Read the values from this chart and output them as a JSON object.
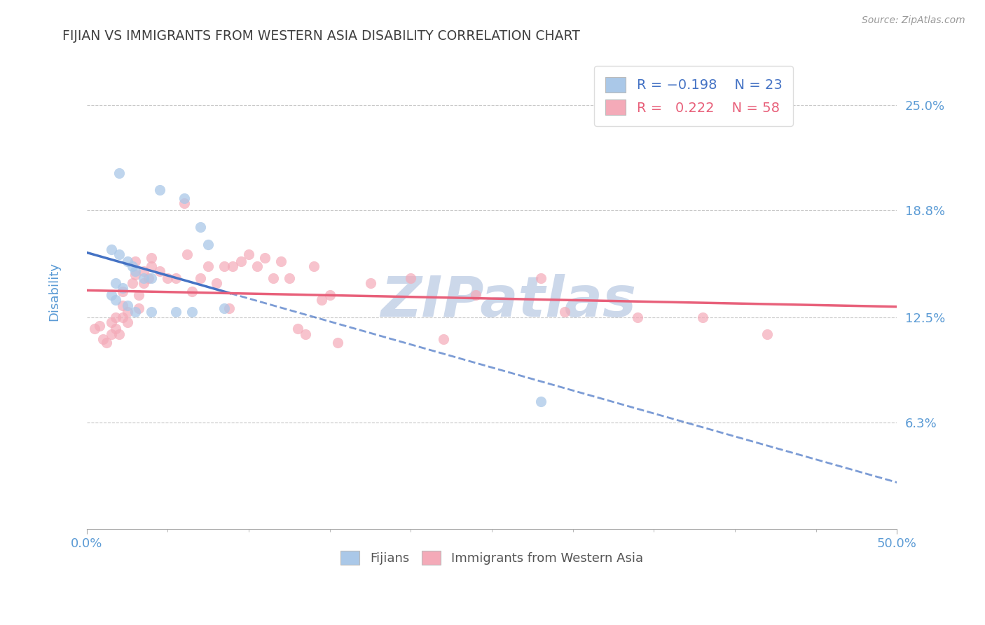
{
  "title": "FIJIAN VS IMMIGRANTS FROM WESTERN ASIA DISABILITY CORRELATION CHART",
  "source_text": "Source: ZipAtlas.com",
  "ylabel": "Disability",
  "xlim": [
    0.0,
    0.5
  ],
  "ylim": [
    0.0,
    0.28
  ],
  "ytick_labels": [
    "6.3%",
    "12.5%",
    "18.8%",
    "25.0%"
  ],
  "ytick_values": [
    0.063,
    0.125,
    0.188,
    0.25
  ],
  "xtick_labels": [
    "0.0%",
    "50.0%"
  ],
  "xtick_values": [
    0.0,
    0.5
  ],
  "fijian_color": "#aac8e8",
  "western_asia_color": "#f4aab8",
  "fijian_line_color": "#4472c4",
  "western_asia_line_color": "#e8607a",
  "grid_color": "#c8c8c8",
  "watermark_color": "#ccd8ea",
  "title_color": "#404040",
  "tick_label_color": "#5b9bd5",
  "fijians_points": [
    [
      0.02,
      0.21
    ],
    [
      0.045,
      0.2
    ],
    [
      0.06,
      0.195
    ],
    [
      0.07,
      0.178
    ],
    [
      0.075,
      0.168
    ],
    [
      0.015,
      0.165
    ],
    [
      0.02,
      0.162
    ],
    [
      0.025,
      0.158
    ],
    [
      0.028,
      0.155
    ],
    [
      0.03,
      0.152
    ],
    [
      0.035,
      0.148
    ],
    [
      0.04,
      0.148
    ],
    [
      0.018,
      0.145
    ],
    [
      0.022,
      0.142
    ],
    [
      0.015,
      0.138
    ],
    [
      0.018,
      0.135
    ],
    [
      0.025,
      0.132
    ],
    [
      0.03,
      0.128
    ],
    [
      0.04,
      0.128
    ],
    [
      0.055,
      0.128
    ],
    [
      0.065,
      0.128
    ],
    [
      0.085,
      0.13
    ],
    [
      0.28,
      0.075
    ]
  ],
  "western_asia_points": [
    [
      0.005,
      0.118
    ],
    [
      0.008,
      0.12
    ],
    [
      0.01,
      0.112
    ],
    [
      0.012,
      0.11
    ],
    [
      0.015,
      0.115
    ],
    [
      0.015,
      0.122
    ],
    [
      0.018,
      0.118
    ],
    [
      0.018,
      0.125
    ],
    [
      0.02,
      0.115
    ],
    [
      0.022,
      0.125
    ],
    [
      0.022,
      0.132
    ],
    [
      0.022,
      0.14
    ],
    [
      0.025,
      0.122
    ],
    [
      0.025,
      0.128
    ],
    [
      0.028,
      0.145
    ],
    [
      0.03,
      0.15
    ],
    [
      0.03,
      0.158
    ],
    [
      0.032,
      0.13
    ],
    [
      0.032,
      0.138
    ],
    [
      0.035,
      0.145
    ],
    [
      0.035,
      0.152
    ],
    [
      0.038,
      0.148
    ],
    [
      0.04,
      0.16
    ],
    [
      0.04,
      0.155
    ],
    [
      0.045,
      0.152
    ],
    [
      0.05,
      0.148
    ],
    [
      0.055,
      0.148
    ],
    [
      0.06,
      0.192
    ],
    [
      0.062,
      0.162
    ],
    [
      0.065,
      0.14
    ],
    [
      0.07,
      0.148
    ],
    [
      0.075,
      0.155
    ],
    [
      0.08,
      0.145
    ],
    [
      0.085,
      0.155
    ],
    [
      0.088,
      0.13
    ],
    [
      0.09,
      0.155
    ],
    [
      0.095,
      0.158
    ],
    [
      0.1,
      0.162
    ],
    [
      0.105,
      0.155
    ],
    [
      0.11,
      0.16
    ],
    [
      0.115,
      0.148
    ],
    [
      0.12,
      0.158
    ],
    [
      0.125,
      0.148
    ],
    [
      0.13,
      0.118
    ],
    [
      0.135,
      0.115
    ],
    [
      0.14,
      0.155
    ],
    [
      0.145,
      0.135
    ],
    [
      0.15,
      0.138
    ],
    [
      0.155,
      0.11
    ],
    [
      0.175,
      0.145
    ],
    [
      0.2,
      0.148
    ],
    [
      0.22,
      0.112
    ],
    [
      0.24,
      0.138
    ],
    [
      0.28,
      0.148
    ],
    [
      0.295,
      0.128
    ],
    [
      0.34,
      0.125
    ],
    [
      0.38,
      0.125
    ],
    [
      0.42,
      0.115
    ]
  ]
}
